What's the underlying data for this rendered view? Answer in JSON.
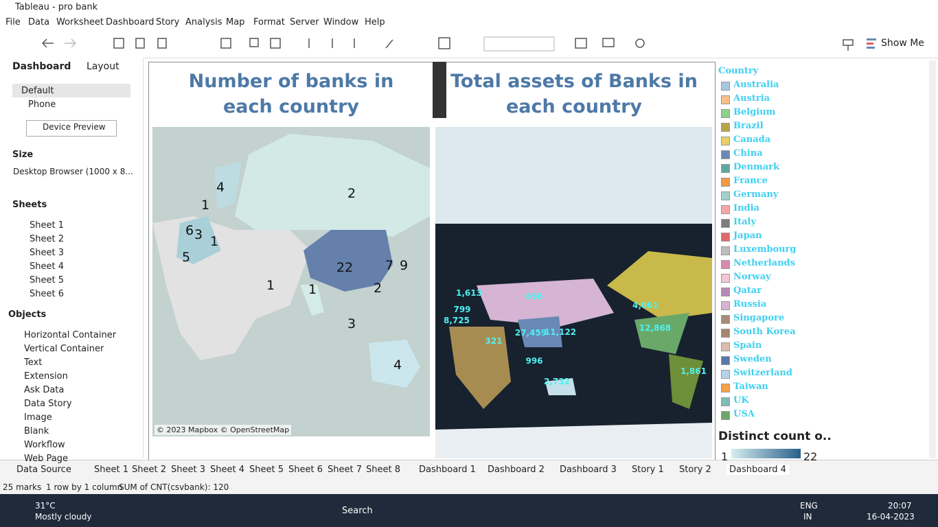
{
  "window": {
    "title": "Tableau - pro bank"
  },
  "menu": [
    "File",
    "Data",
    "Worksheet",
    "Dashboard",
    "Story",
    "Analysis",
    "Map",
    "Format",
    "Server",
    "Window",
    "Help"
  ],
  "toolbar": {
    "show_me": "Show Me"
  },
  "left_panel": {
    "tabs": [
      "Dashboard",
      "Layout"
    ],
    "devices": [
      "Default",
      "Phone"
    ],
    "device_preview": "Device Preview",
    "size_label": "Size",
    "size_value": "Desktop Browser (1000 x 8...",
    "sheets_label": "Sheets",
    "sheets": [
      "Sheet 1",
      "Sheet 2",
      "Sheet 3",
      "Sheet 4",
      "Sheet 5",
      "Sheet 6"
    ],
    "objects_label": "Objects",
    "objects": [
      "Horizontal Container",
      "Vertical Container",
      "Text",
      "Extension",
      "Ask Data",
      "Data Story",
      "Image",
      "Blank",
      "Workflow",
      "Web Page"
    ]
  },
  "dashboard": {
    "left_map": {
      "title": "Number of banks in each country",
      "labels": [
        "4",
        "2",
        "1",
        "6",
        "3",
        "1",
        "5",
        "22",
        "7",
        "9",
        "1",
        "1",
        "2",
        "3",
        "4"
      ],
      "attribution": "© 2023 Mapbox © OpenStreetMap"
    },
    "right_map": {
      "title": "Total assets of Banks in each country",
      "labels": [
        "1,613",
        "799",
        "8,725",
        "696",
        "4,061",
        "12,868",
        "321",
        "27,459",
        "11,122",
        "996",
        "2,732",
        "1,861"
      ]
    },
    "legend": {
      "title": "Country",
      "items": [
        {
          "name": "Australia",
          "color": "#a6c8e0"
        },
        {
          "name": "Austria",
          "color": "#f8c08a"
        },
        {
          "name": "Belgium",
          "color": "#8fd08a"
        },
        {
          "name": "Brazil",
          "color": "#b6a54a"
        },
        {
          "name": "Canada",
          "color": "#e6ce6a"
        },
        {
          "name": "China",
          "color": "#6a88b4"
        },
        {
          "name": "Denmark",
          "color": "#5fa8a2"
        },
        {
          "name": "France",
          "color": "#f19a45"
        },
        {
          "name": "Germany",
          "color": "#a3cfcb"
        },
        {
          "name": "India",
          "color": "#f4a6a6"
        },
        {
          "name": "Italy",
          "color": "#7d7d7d"
        },
        {
          "name": "Japan",
          "color": "#e16868"
        },
        {
          "name": "Luxembourg",
          "color": "#bdbdbd"
        },
        {
          "name": "Netherlands",
          "color": "#d98bb0"
        },
        {
          "name": "Norway",
          "color": "#f6c6d6"
        },
        {
          "name": "Qatar",
          "color": "#b48ab8"
        },
        {
          "name": "Russia",
          "color": "#d6b4d4"
        },
        {
          "name": "Singapore",
          "color": "#a88c78"
        },
        {
          "name": "South Korea",
          "color": "#a6886e"
        },
        {
          "name": "Spain",
          "color": "#dcbcae"
        },
        {
          "name": "Sweden",
          "color": "#5a78a8"
        },
        {
          "name": "Switzerland",
          "color": "#b3d3ec"
        },
        {
          "name": "Taiwan",
          "color": "#f5a14a"
        },
        {
          "name": "UK",
          "color": "#7fbcb8"
        },
        {
          "name": "USA",
          "color": "#6aa86a"
        }
      ]
    },
    "color_legend": {
      "title": "Distinct count o..",
      "min": "1",
      "max": "22"
    }
  },
  "tabs": [
    "Data Source",
    "Sheet 1",
    "Sheet 2",
    "Sheet 3",
    "Sheet 4",
    "Sheet 5",
    "Sheet 6",
    "Sheet 7",
    "Sheet 8",
    "Dashboard 1",
    "Dashboard 2",
    "Dashboard 3",
    "Story 1",
    "Story 2",
    "Dashboard 4"
  ],
  "status": [
    "25 marks",
    "1 row by 1 column",
    "SUM of CNT(csvbank): 120"
  ],
  "taskbar": {
    "temp": "31°C",
    "weather": "Mostly cloudy",
    "search": "Search",
    "lang": "ENG",
    "region": "IN",
    "time": "20:07",
    "date": "16-04-2023"
  }
}
